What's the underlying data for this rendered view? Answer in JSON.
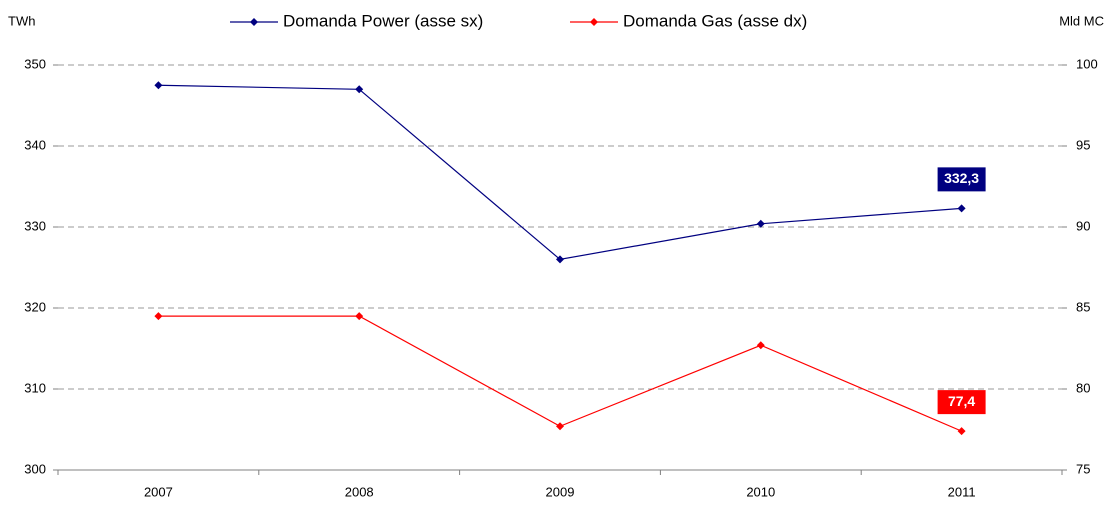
{
  "chart_data": {
    "type": "line",
    "y_label": "TWh",
    "y2_label": "Mld MC",
    "categories": [
      "2007",
      "2008",
      "2009",
      "2010",
      "2011"
    ],
    "series": [
      {
        "name": "Domanda Power (asse sx)",
        "color": "#000080",
        "values": [
          347.5,
          347.0,
          326.0,
          330.4,
          332.3
        ],
        "value_labels": [
          null,
          null,
          null,
          null,
          "332,3"
        ]
      },
      {
        "name": "Domanda Gas (asse dx)",
        "color": "#ff0000",
        "axis": "y2",
        "values": [
          84.5,
          84.5,
          77.7,
          82.7,
          77.4
        ],
        "value_labels": [
          null,
          null,
          null,
          null,
          "77,4"
        ]
      }
    ],
    "ylim": [
      300,
      350
    ],
    "yticks": [
      300,
      310,
      320,
      330,
      340,
      350
    ],
    "y2lim": [
      75,
      100
    ],
    "y2ticks": [
      75,
      80,
      85,
      90,
      95,
      100
    ],
    "grid": true,
    "legend": "top"
  }
}
